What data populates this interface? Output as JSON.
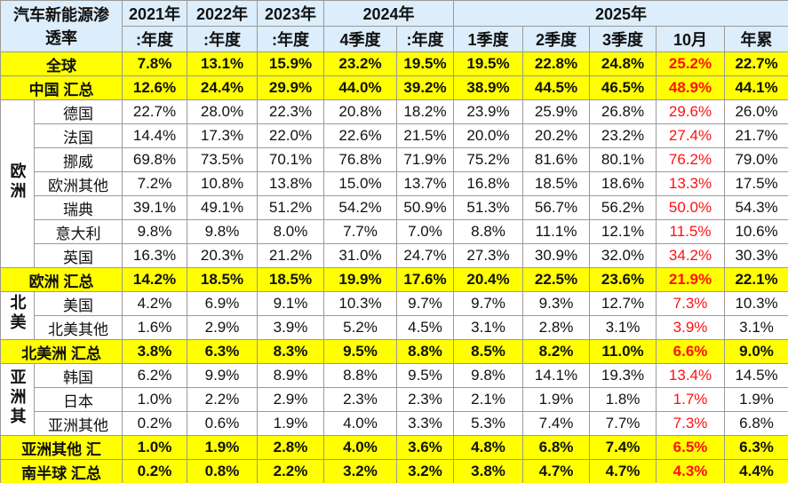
{
  "table": {
    "corner": [
      "汽车新能源渗",
      "透率"
    ],
    "years": [
      {
        "label": "2021年",
        "span": 1
      },
      {
        "label": "2022年",
        "span": 1
      },
      {
        "label": "2023年",
        "span": 1
      },
      {
        "label": "2024年",
        "span": 2
      },
      {
        "label": "2025年",
        "span": 5
      }
    ],
    "periods": [
      ":年度",
      ":年度",
      ":年度",
      "4季度",
      ":年度",
      "1季度",
      "2季度",
      "3季度",
      "10月",
      "年累"
    ],
    "rows": [
      {
        "label": "全球",
        "summary": true,
        "values": [
          "7.8%",
          "13.1%",
          "15.9%",
          "23.2%",
          "19.5%",
          "19.5%",
          "22.8%",
          "24.8%",
          "25.2%",
          "22.7%"
        ]
      },
      {
        "label": "中国 汇总",
        "summary": true,
        "values": [
          "12.6%",
          "24.4%",
          "29.9%",
          "44.0%",
          "39.2%",
          "38.9%",
          "44.5%",
          "46.5%",
          "48.9%",
          "44.1%"
        ]
      },
      {
        "group": "欧洲",
        "items": [
          {
            "label": "德国",
            "values": [
              "22.7%",
              "28.0%",
              "22.3%",
              "20.8%",
              "18.2%",
              "23.9%",
              "25.9%",
              "26.8%",
              "29.6%",
              "26.0%"
            ]
          },
          {
            "label": "法国",
            "values": [
              "14.4%",
              "17.3%",
              "22.0%",
              "22.6%",
              "21.5%",
              "20.0%",
              "20.2%",
              "23.2%",
              "27.4%",
              "21.7%"
            ]
          },
          {
            "label": "挪威",
            "values": [
              "69.8%",
              "73.5%",
              "70.1%",
              "76.8%",
              "71.9%",
              "75.2%",
              "81.6%",
              "80.1%",
              "76.2%",
              "79.0%"
            ]
          },
          {
            "label": "欧洲其他",
            "values": [
              "7.2%",
              "10.8%",
              "13.8%",
              "15.0%",
              "13.7%",
              "16.8%",
              "18.5%",
              "18.6%",
              "13.3%",
              "17.5%"
            ]
          },
          {
            "label": "瑞典",
            "values": [
              "39.1%",
              "49.1%",
              "51.2%",
              "54.2%",
              "50.9%",
              "51.3%",
              "56.7%",
              "56.2%",
              "50.0%",
              "54.3%"
            ]
          },
          {
            "label": "意大利",
            "values": [
              "9.8%",
              "9.8%",
              "8.0%",
              "7.7%",
              "7.0%",
              "8.8%",
              "11.1%",
              "12.1%",
              "11.5%",
              "10.6%"
            ]
          },
          {
            "label": "英国",
            "values": [
              "16.3%",
              "20.3%",
              "21.2%",
              "31.0%",
              "24.7%",
              "27.3%",
              "30.9%",
              "32.0%",
              "34.2%",
              "30.3%"
            ]
          }
        ]
      },
      {
        "label": "欧洲 汇总",
        "summary": true,
        "values": [
          "14.2%",
          "18.5%",
          "18.5%",
          "19.9%",
          "17.6%",
          "20.4%",
          "22.5%",
          "23.6%",
          "21.9%",
          "22.1%"
        ]
      },
      {
        "group": "北美",
        "items": [
          {
            "label": "美国",
            "values": [
              "4.2%",
              "6.9%",
              "9.1%",
              "10.3%",
              "9.7%",
              "9.7%",
              "9.3%",
              "12.7%",
              "7.3%",
              "10.3%"
            ]
          },
          {
            "label": "北美其他",
            "values": [
              "1.6%",
              "2.9%",
              "3.9%",
              "5.2%",
              "4.5%",
              "3.1%",
              "2.8%",
              "3.1%",
              "3.9%",
              "3.1%"
            ]
          }
        ]
      },
      {
        "label": "北美洲 汇总",
        "summary": true,
        "values": [
          "3.8%",
          "6.3%",
          "8.3%",
          "9.5%",
          "8.8%",
          "8.5%",
          "8.2%",
          "11.0%",
          "6.6%",
          "9.0%"
        ]
      },
      {
        "group": "亚洲其",
        "items": [
          {
            "label": "韩国",
            "values": [
              "6.2%",
              "9.9%",
              "8.9%",
              "8.8%",
              "9.5%",
              "9.8%",
              "14.1%",
              "19.3%",
              "13.4%",
              "14.5%"
            ]
          },
          {
            "label": "日本",
            "values": [
              "1.0%",
              "2.2%",
              "2.9%",
              "2.3%",
              "2.3%",
              "2.1%",
              "1.9%",
              "1.8%",
              "1.7%",
              "1.9%"
            ]
          },
          {
            "label": "亚洲其他",
            "values": [
              "0.2%",
              "0.6%",
              "1.9%",
              "4.0%",
              "3.3%",
              "5.3%",
              "7.4%",
              "7.7%",
              "7.3%",
              "6.8%"
            ]
          }
        ]
      },
      {
        "label": "亚洲其他 汇",
        "summary": true,
        "values": [
          "1.0%",
          "1.9%",
          "2.8%",
          "4.0%",
          "3.6%",
          "4.8%",
          "6.8%",
          "7.4%",
          "6.5%",
          "6.3%"
        ]
      },
      {
        "label": "南半球 汇总",
        "summary": true,
        "values": [
          "0.2%",
          "0.8%",
          "2.2%",
          "3.2%",
          "3.2%",
          "3.8%",
          "4.7%",
          "4.7%",
          "4.3%",
          "4.4%"
        ]
      }
    ]
  }
}
